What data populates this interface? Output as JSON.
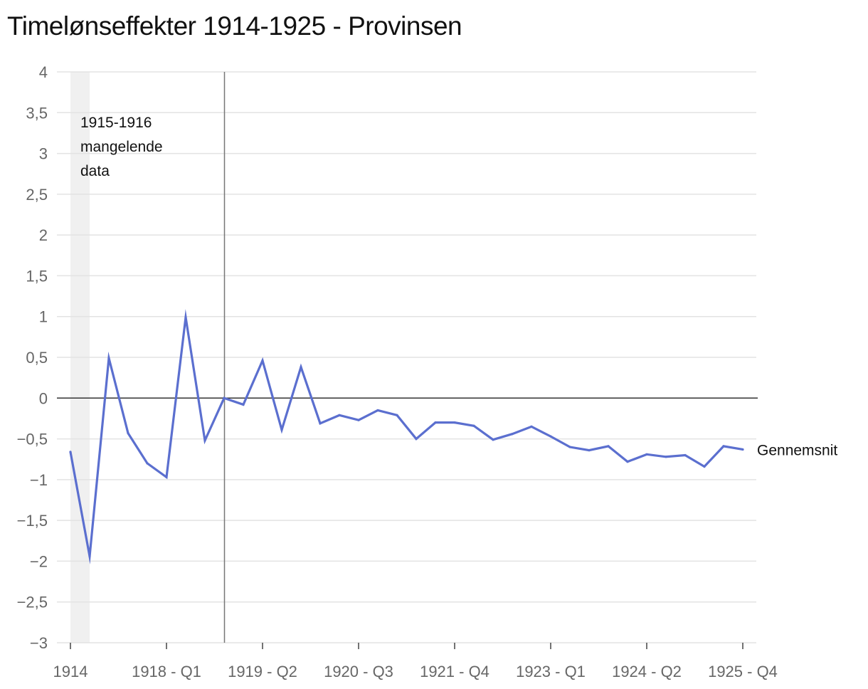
{
  "chart_data": {
    "type": "line",
    "title": "Timelønseffekter 1914-1925 - Provinsen",
    "xlabel": "",
    "ylabel": "",
    "ylim": [
      -3,
      4
    ],
    "y_ticks": [
      4,
      3.5,
      3,
      2.5,
      2,
      1.5,
      1,
      0.5,
      0,
      -0.5,
      -1,
      -1.5,
      -2,
      -2.5,
      -3
    ],
    "y_tick_labels": [
      "4",
      "3,5",
      "3",
      "2,5",
      "2",
      "1,5",
      "1",
      "0,5",
      "0",
      "−0,5",
      "−1",
      "−1,5",
      "−2",
      "−2,5",
      "−3"
    ],
    "x_tick_labels": [
      {
        "index": 0,
        "label": "1914"
      },
      {
        "index": 5,
        "label": "1918 - Q1"
      },
      {
        "index": 10,
        "label": "1919 - Q2"
      },
      {
        "index": 15,
        "label": "1920 - Q3"
      },
      {
        "index": 20,
        "label": "1921 - Q4"
      },
      {
        "index": 25,
        "label": "1923 - Q1"
      },
      {
        "index": 30,
        "label": "1924 - Q2"
      },
      {
        "index": 35,
        "label": "1925 - Q4"
      }
    ],
    "grid": true,
    "shaded_band": {
      "from_index": 0,
      "to_index": 1,
      "label_lines": [
        "1915-1916",
        "mangelende",
        "data"
      ]
    },
    "reference_line_index": 8,
    "series": [
      {
        "name": "Gennemsnit",
        "color": "#5b6fcf",
        "values": [
          -0.66,
          -1.94,
          0.49,
          -0.43,
          -0.8,
          -0.97,
          0.99,
          -0.52,
          0.0,
          -0.08,
          0.46,
          -0.39,
          0.38,
          -0.31,
          -0.21,
          -0.27,
          -0.15,
          -0.21,
          -0.5,
          -0.3,
          -0.3,
          -0.34,
          -0.51,
          -0.44,
          -0.35,
          -0.47,
          -0.6,
          -0.64,
          -0.59,
          -0.78,
          -0.69,
          -0.72,
          -0.7,
          -0.84,
          -0.59,
          -0.63
        ]
      }
    ]
  }
}
